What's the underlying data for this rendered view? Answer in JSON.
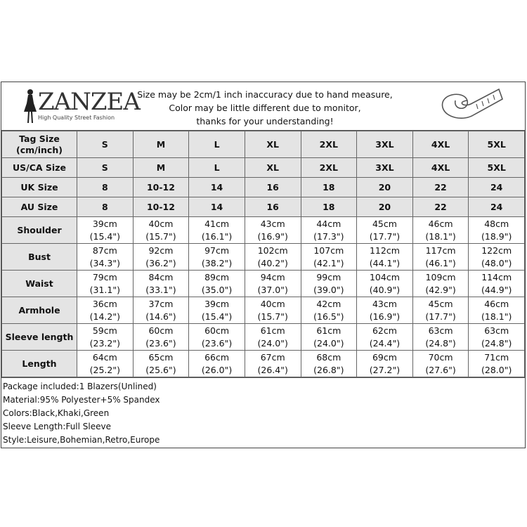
{
  "header": {
    "brand": "ZANZEA",
    "tagline": "High Quality Street Fashion",
    "notice": [
      "Size may be 2cm/1 inch inaccuracy due to hand measure,",
      "Color may be little different due to monitor,",
      "thanks for your understanding!"
    ]
  },
  "size_rows": [
    {
      "label": "Tag Size (cm/inch)",
      "values": [
        "S",
        "M",
        "L",
        "XL",
        "2XL",
        "3XL",
        "4XL",
        "5XL"
      ]
    },
    {
      "label": "US/CA Size",
      "values": [
        "S",
        "M",
        "L",
        "XL",
        "2XL",
        "3XL",
        "4XL",
        "5XL"
      ]
    },
    {
      "label": "UK Size",
      "values": [
        "8",
        "10-12",
        "14",
        "16",
        "18",
        "20",
        "22",
        "24"
      ]
    },
    {
      "label": "AU Size",
      "values": [
        "8",
        "10-12",
        "14",
        "16",
        "18",
        "20",
        "22",
        "24"
      ]
    }
  ],
  "measure_rows": [
    {
      "label": "Shoulder",
      "cm": [
        "39cm",
        "40cm",
        "41cm",
        "43cm",
        "44cm",
        "45cm",
        "46cm",
        "48cm"
      ],
      "inch": [
        "(15.4\")",
        "(15.7\")",
        "(16.1\")",
        "(16.9\")",
        "(17.3\")",
        "(17.7\")",
        "(18.1\")",
        "(18.9\")"
      ]
    },
    {
      "label": "Bust",
      "cm": [
        "87cm",
        "92cm",
        "97cm",
        "102cm",
        "107cm",
        "112cm",
        "117cm",
        "122cm"
      ],
      "inch": [
        "(34.3\")",
        "(36.2\")",
        "(38.2\")",
        "(40.2\")",
        "(42.1\")",
        "(44.1\")",
        "(46.1\")",
        "(48.0\")"
      ]
    },
    {
      "label": "Waist",
      "cm": [
        "79cm",
        "84cm",
        "89cm",
        "94cm",
        "99cm",
        "104cm",
        "109cm",
        "114cm"
      ],
      "inch": [
        "(31.1\")",
        "(33.1\")",
        "(35.0\")",
        "(37.0\")",
        "(39.0\")",
        "(40.9\")",
        "(42.9\")",
        "(44.9\")"
      ]
    },
    {
      "label": "Armhole",
      "cm": [
        "36cm",
        "37cm",
        "39cm",
        "40cm",
        "42cm",
        "43cm",
        "45cm",
        "46cm"
      ],
      "inch": [
        "(14.2\")",
        "(14.6\")",
        "(15.4\")",
        "(15.7\")",
        "(16.5\")",
        "(16.9\")",
        "(17.7\")",
        "(18.1\")"
      ]
    },
    {
      "label": "Sleeve length",
      "cm": [
        "59cm",
        "60cm",
        "60cm",
        "61cm",
        "61cm",
        "62cm",
        "63cm",
        "63cm"
      ],
      "inch": [
        "(23.2\")",
        "(23.6\")",
        "(23.6\")",
        "(24.0\")",
        "(24.0\")",
        "(24.4\")",
        "(24.8\")",
        "(24.8\")"
      ]
    },
    {
      "label": "Length",
      "cm": [
        "64cm",
        "65cm",
        "66cm",
        "67cm",
        "68cm",
        "69cm",
        "70cm",
        "71cm"
      ],
      "inch": [
        "(25.2\")",
        "(25.6\")",
        "(26.0\")",
        "(26.4\")",
        "(26.8\")",
        "(27.2\")",
        "(27.6\")",
        "(28.0\")"
      ]
    }
  ],
  "notes": [
    "Package included:1 Blazers(Unlined)",
    "Material:95% Polyester+5% Spandex",
    "Colors:Black,Khaki,Green",
    "Sleeve Length:Full Sleeve",
    "Style:Leisure,Bohemian,Retro,Europe"
  ]
}
